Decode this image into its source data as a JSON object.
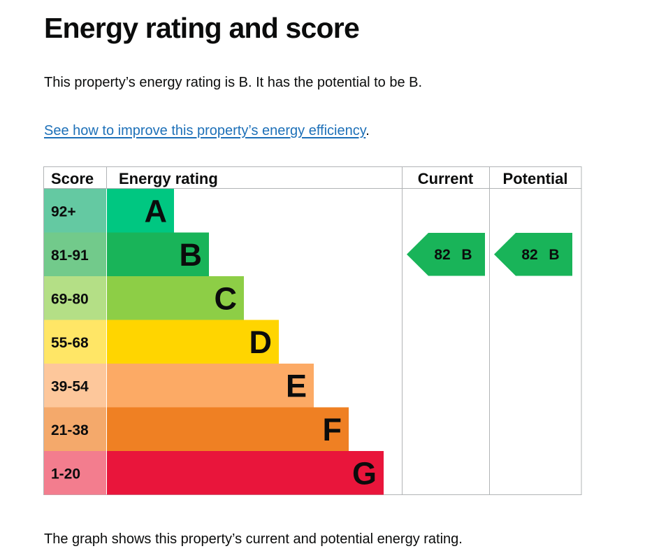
{
  "page": {
    "heading": "Energy rating and score",
    "summary": "This property’s energy rating is B. It has the potential to be B.",
    "improve_link": "See how to improve this property’s energy efficiency",
    "improve_suffix": ".",
    "caption": "The graph shows this property’s current and potential energy rating."
  },
  "chart_data": {
    "type": "bar",
    "headers": {
      "score": "Score",
      "rating": "Energy rating",
      "current": "Current",
      "potential": "Potential"
    },
    "bands": [
      {
        "range": "92+",
        "letter": "A",
        "color": "#00c781",
        "score_color": "#64c9a2"
      },
      {
        "range": "81-91",
        "letter": "B",
        "color": "#19b459",
        "score_color": "#72ca8b"
      },
      {
        "range": "69-80",
        "letter": "C",
        "color": "#8dce46",
        "score_color": "#b4df86"
      },
      {
        "range": "55-68",
        "letter": "D",
        "color": "#ffd500",
        "score_color": "#ffe666"
      },
      {
        "range": "39-54",
        "letter": "E",
        "color": "#fcaa65",
        "score_color": "#fdc79b"
      },
      {
        "range": "21-38",
        "letter": "F",
        "color": "#ef8023",
        "score_color": "#f4a96b"
      },
      {
        "range": "1-20",
        "letter": "G",
        "color": "#e9153b",
        "score_color": "#f37d8e"
      }
    ],
    "current": {
      "score": "82",
      "letter": "B",
      "color": "#19b459"
    },
    "potential": {
      "score": "82",
      "letter": "B",
      "color": "#19b459"
    }
  }
}
